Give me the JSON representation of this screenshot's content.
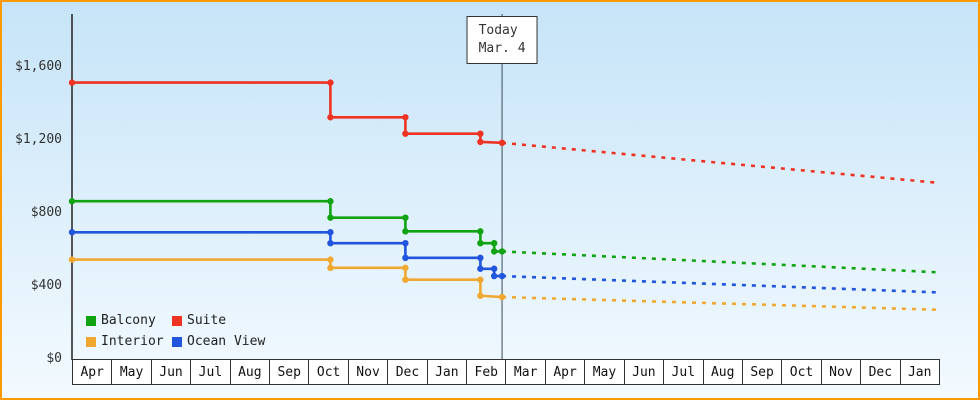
{
  "frame": {
    "border_color": "#ff9a00"
  },
  "chart_data": {
    "type": "line",
    "title": "",
    "xlabel": "",
    "ylabel": "",
    "y_max": 1600,
    "grid": false,
    "y_ticks": [
      {
        "label": "$0",
        "value": 0
      },
      {
        "label": "$400",
        "value": 400
      },
      {
        "label": "$800",
        "value": 800
      },
      {
        "label": "$1,200",
        "value": 1200
      },
      {
        "label": "$1,600",
        "value": 1600
      }
    ],
    "x_axis": {
      "months": [
        "Apr",
        "May",
        "Jun",
        "Jul",
        "Aug",
        "Sep",
        "Oct",
        "Nov",
        "Dec",
        "Jan",
        "Feb",
        "Mar",
        "Apr",
        "May",
        "Jun",
        "Jul",
        "Aug",
        "Sep",
        "Oct",
        "Nov",
        "Dec",
        "Jan"
      ]
    },
    "today": {
      "label_line1": "Today",
      "label_line2": "Mar. 4",
      "month_index": 10.9
    },
    "forecast_end_month_index": 22,
    "series": [
      {
        "name": "Balcony",
        "color": "#12a312",
        "points": [
          [
            0,
            870
          ],
          [
            6.55,
            870
          ],
          [
            6.55,
            780
          ],
          [
            8.45,
            780
          ],
          [
            8.45,
            705
          ],
          [
            10.35,
            705
          ],
          [
            10.35,
            640
          ],
          [
            10.7,
            640
          ],
          [
            10.7,
            595
          ],
          [
            10.9,
            595
          ]
        ],
        "forecast_value": 480
      },
      {
        "name": "Suite",
        "color": "#ee3322",
        "points": [
          [
            0,
            1520
          ],
          [
            6.55,
            1520
          ],
          [
            6.55,
            1330
          ],
          [
            8.45,
            1330
          ],
          [
            8.45,
            1240
          ],
          [
            10.35,
            1240
          ],
          [
            10.35,
            1195
          ],
          [
            10.9,
            1190
          ]
        ],
        "forecast_value": 970
      },
      {
        "name": "Interior",
        "color": "#f0a830",
        "points": [
          [
            0,
            550
          ],
          [
            6.55,
            550
          ],
          [
            6.55,
            505
          ],
          [
            8.45,
            505
          ],
          [
            8.45,
            440
          ],
          [
            10.35,
            440
          ],
          [
            10.35,
            352
          ],
          [
            10.9,
            345
          ]
        ],
        "forecast_value": 275
      },
      {
        "name": "Ocean View",
        "color": "#2255dd",
        "points": [
          [
            0,
            700
          ],
          [
            6.55,
            700
          ],
          [
            6.55,
            640
          ],
          [
            8.45,
            640
          ],
          [
            8.45,
            560
          ],
          [
            10.35,
            560
          ],
          [
            10.35,
            500
          ],
          [
            10.7,
            500
          ],
          [
            10.7,
            460
          ],
          [
            10.9,
            460
          ]
        ],
        "forecast_value": 370
      }
    ],
    "legend": {
      "position": "bottom-left",
      "items": [
        "Balcony",
        "Suite",
        "Interior",
        "Ocean View"
      ]
    }
  }
}
